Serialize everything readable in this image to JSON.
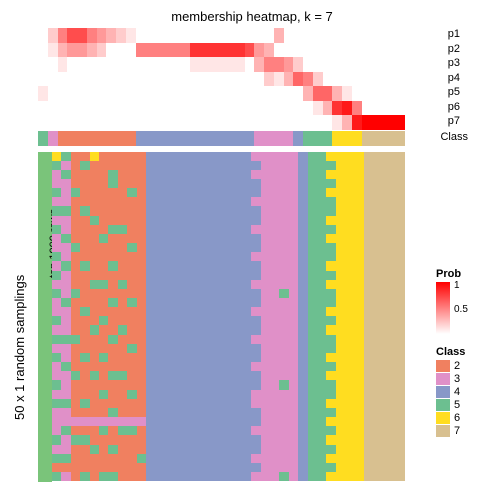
{
  "title": "membership heatmap, k = 7",
  "title_fontsize": 13,
  "ylabel_outer": "50 x 1 random samplings",
  "ylabel_inner": "top 1000 rows",
  "prob_labels": [
    "p1",
    "p2",
    "p3",
    "p4",
    "p5",
    "p6",
    "p7"
  ],
  "class_label": "Class",
  "colors": {
    "white": "#ffffff",
    "green_side": "#7ac47a",
    "prob_low": "#ffffff",
    "prob_high": "#ff0000"
  },
  "class_colors": {
    "2": "#f08060",
    "3": "#e090c8",
    "4": "#8898c8",
    "5": "#6cbf90",
    "6": "#ffdd20",
    "7": "#d8c090"
  },
  "col_widths": [
    0.025,
    0.025,
    0.025,
    0.025,
    0.025,
    0.025,
    0.025,
    0.025,
    0.025,
    0.025,
    0.14,
    0.14,
    0.025,
    0.025,
    0.025,
    0.025,
    0.025,
    0.025,
    0.025,
    0.025,
    0.025,
    0.025,
    0.025,
    0.025,
    0.11
  ],
  "class_assign": [
    5,
    3,
    2,
    2,
    2,
    2,
    2,
    2,
    2,
    2,
    4,
    4,
    4,
    3,
    3,
    3,
    3,
    4,
    5,
    5,
    5,
    6,
    6,
    6,
    7
  ],
  "prob_rows": [
    [
      0,
      0.2,
      0.5,
      0.7,
      0.7,
      0.5,
      0.4,
      0.3,
      0.2,
      0.1,
      0,
      0,
      0,
      0,
      0,
      0.3,
      0,
      0,
      0,
      0,
      0,
      0,
      0,
      0,
      0
    ],
    [
      0,
      0.1,
      0.3,
      0.4,
      0.4,
      0.3,
      0.2,
      0,
      0,
      0,
      0.5,
      0.8,
      0.7,
      0.4,
      0.3,
      0,
      0,
      0,
      0,
      0,
      0,
      0,
      0,
      0,
      0
    ],
    [
      0,
      0,
      0.1,
      0,
      0,
      0,
      0,
      0,
      0,
      0,
      0,
      0.1,
      0,
      0.3,
      0.5,
      0.5,
      0.4,
      0.2,
      0,
      0,
      0,
      0,
      0,
      0,
      0
    ],
    [
      0,
      0,
      0,
      0,
      0,
      0,
      0,
      0,
      0,
      0,
      0,
      0,
      0,
      0,
      0.2,
      0.1,
      0.3,
      0.6,
      0.5,
      0.2,
      0,
      0,
      0,
      0,
      0
    ],
    [
      0.1,
      0,
      0,
      0,
      0,
      0,
      0,
      0,
      0,
      0,
      0,
      0,
      0,
      0,
      0,
      0,
      0,
      0,
      0.3,
      0.6,
      0.6,
      0.3,
      0.1,
      0,
      0
    ],
    [
      0,
      0,
      0,
      0,
      0,
      0,
      0,
      0,
      0,
      0,
      0,
      0,
      0,
      0,
      0,
      0,
      0,
      0,
      0,
      0.1,
      0.3,
      0.8,
      0.9,
      0.5,
      0
    ],
    [
      0,
      0,
      0,
      0,
      0,
      0,
      0,
      0,
      0,
      0,
      0,
      0,
      0,
      0,
      0,
      0,
      0,
      0,
      0,
      0,
      0,
      0.1,
      0.3,
      0.9,
      1
    ]
  ],
  "heat_rows": 36,
  "heat_data_class": [
    [
      6,
      5,
      2,
      2,
      6,
      2,
      2,
      2,
      2,
      2,
      4,
      4,
      3,
      3,
      3,
      3,
      3,
      4,
      5,
      5,
      6,
      6,
      6,
      6,
      7
    ],
    [
      5,
      3,
      2,
      5,
      2,
      2,
      2,
      2,
      2,
      2,
      4,
      4,
      4,
      3,
      3,
      3,
      3,
      4,
      5,
      5,
      5,
      6,
      6,
      6,
      7
    ],
    [
      3,
      5,
      2,
      2,
      2,
      2,
      5,
      2,
      2,
      2,
      4,
      4,
      3,
      3,
      3,
      3,
      3,
      4,
      5,
      5,
      6,
      6,
      6,
      6,
      7
    ],
    [
      3,
      3,
      2,
      2,
      2,
      2,
      5,
      2,
      2,
      2,
      4,
      4,
      4,
      3,
      3,
      3,
      3,
      4,
      5,
      5,
      5,
      6,
      6,
      6,
      7
    ],
    [
      5,
      3,
      5,
      2,
      2,
      2,
      2,
      2,
      5,
      2,
      4,
      4,
      4,
      3,
      3,
      3,
      3,
      4,
      5,
      5,
      6,
      6,
      6,
      6,
      7
    ],
    [
      3,
      3,
      2,
      2,
      2,
      2,
      2,
      2,
      2,
      2,
      4,
      4,
      3,
      3,
      3,
      3,
      3,
      4,
      5,
      5,
      5,
      6,
      6,
      6,
      7
    ],
    [
      5,
      5,
      2,
      5,
      2,
      2,
      2,
      2,
      2,
      2,
      4,
      4,
      4,
      3,
      3,
      3,
      3,
      4,
      5,
      5,
      5,
      6,
      6,
      6,
      7
    ],
    [
      3,
      3,
      2,
      2,
      5,
      2,
      2,
      2,
      2,
      2,
      4,
      4,
      4,
      3,
      3,
      3,
      3,
      4,
      5,
      5,
      6,
      6,
      6,
      6,
      7
    ],
    [
      5,
      3,
      2,
      2,
      2,
      2,
      5,
      5,
      2,
      2,
      4,
      4,
      3,
      3,
      3,
      3,
      3,
      4,
      5,
      5,
      5,
      6,
      6,
      6,
      7
    ],
    [
      3,
      5,
      2,
      2,
      2,
      5,
      2,
      2,
      2,
      2,
      4,
      4,
      4,
      3,
      3,
      3,
      3,
      4,
      5,
      5,
      6,
      6,
      6,
      6,
      7
    ],
    [
      3,
      3,
      5,
      2,
      2,
      2,
      2,
      2,
      5,
      2,
      4,
      4,
      4,
      3,
      3,
      3,
      3,
      4,
      5,
      5,
      5,
      6,
      6,
      6,
      7
    ],
    [
      5,
      3,
      2,
      2,
      2,
      2,
      2,
      2,
      2,
      2,
      4,
      4,
      3,
      3,
      3,
      3,
      3,
      4,
      5,
      5,
      5,
      6,
      6,
      6,
      7
    ],
    [
      3,
      5,
      2,
      5,
      2,
      2,
      5,
      2,
      2,
      2,
      4,
      4,
      4,
      3,
      3,
      3,
      3,
      4,
      5,
      5,
      6,
      6,
      6,
      6,
      7
    ],
    [
      5,
      3,
      2,
      2,
      2,
      2,
      2,
      2,
      2,
      2,
      4,
      4,
      4,
      3,
      3,
      3,
      3,
      4,
      5,
      5,
      5,
      6,
      6,
      6,
      7
    ],
    [
      3,
      3,
      2,
      2,
      5,
      5,
      2,
      5,
      2,
      2,
      4,
      4,
      3,
      3,
      3,
      3,
      3,
      4,
      5,
      5,
      6,
      6,
      6,
      6,
      7
    ],
    [
      5,
      3,
      5,
      2,
      2,
      2,
      2,
      2,
      2,
      2,
      4,
      4,
      4,
      3,
      3,
      5,
      3,
      4,
      5,
      5,
      5,
      6,
      6,
      6,
      7
    ],
    [
      3,
      5,
      2,
      2,
      2,
      2,
      5,
      2,
      5,
      2,
      4,
      4,
      4,
      3,
      3,
      3,
      3,
      4,
      5,
      5,
      5,
      6,
      6,
      6,
      7
    ],
    [
      3,
      3,
      2,
      5,
      2,
      2,
      2,
      2,
      2,
      2,
      4,
      4,
      3,
      3,
      3,
      3,
      3,
      4,
      5,
      5,
      6,
      6,
      6,
      6,
      7
    ],
    [
      5,
      3,
      2,
      2,
      2,
      5,
      2,
      2,
      2,
      2,
      4,
      4,
      4,
      3,
      3,
      3,
      3,
      4,
      5,
      5,
      5,
      6,
      6,
      6,
      7
    ],
    [
      3,
      3,
      2,
      2,
      5,
      2,
      2,
      5,
      2,
      2,
      4,
      4,
      4,
      3,
      3,
      3,
      3,
      4,
      5,
      5,
      6,
      6,
      6,
      6,
      7
    ],
    [
      5,
      5,
      5,
      2,
      2,
      2,
      5,
      2,
      2,
      2,
      4,
      4,
      3,
      3,
      3,
      3,
      3,
      4,
      5,
      5,
      5,
      6,
      6,
      6,
      7
    ],
    [
      3,
      3,
      2,
      2,
      2,
      2,
      2,
      2,
      5,
      2,
      4,
      4,
      4,
      3,
      3,
      3,
      3,
      4,
      5,
      5,
      5,
      6,
      6,
      6,
      7
    ],
    [
      5,
      3,
      2,
      5,
      2,
      5,
      2,
      2,
      2,
      2,
      4,
      4,
      4,
      3,
      3,
      3,
      3,
      4,
      5,
      5,
      6,
      6,
      6,
      6,
      7
    ],
    [
      3,
      5,
      2,
      2,
      2,
      2,
      2,
      2,
      2,
      2,
      4,
      4,
      3,
      3,
      3,
      3,
      3,
      4,
      5,
      5,
      5,
      6,
      6,
      6,
      7
    ],
    [
      3,
      3,
      5,
      2,
      5,
      2,
      5,
      5,
      2,
      2,
      4,
      4,
      4,
      3,
      3,
      3,
      3,
      4,
      5,
      5,
      6,
      6,
      6,
      6,
      7
    ],
    [
      5,
      3,
      2,
      2,
      2,
      2,
      2,
      2,
      2,
      2,
      4,
      4,
      4,
      3,
      3,
      5,
      3,
      4,
      5,
      5,
      5,
      6,
      6,
      6,
      7
    ],
    [
      3,
      3,
      2,
      2,
      2,
      5,
      2,
      2,
      5,
      2,
      4,
      4,
      3,
      3,
      3,
      3,
      3,
      4,
      5,
      5,
      5,
      6,
      6,
      6,
      7
    ],
    [
      5,
      5,
      2,
      5,
      2,
      2,
      2,
      2,
      2,
      2,
      4,
      4,
      3,
      3,
      3,
      3,
      3,
      4,
      5,
      5,
      6,
      6,
      6,
      6,
      7
    ],
    [
      3,
      3,
      2,
      2,
      2,
      2,
      5,
      2,
      2,
      2,
      4,
      4,
      4,
      3,
      3,
      3,
      3,
      4,
      5,
      5,
      5,
      6,
      6,
      6,
      7
    ],
    [
      3,
      3,
      3,
      3,
      3,
      3,
      3,
      3,
      3,
      3,
      4,
      4,
      4,
      3,
      3,
      3,
      3,
      4,
      5,
      5,
      6,
      6,
      6,
      6,
      7
    ],
    [
      3,
      5,
      2,
      2,
      2,
      5,
      2,
      5,
      5,
      2,
      4,
      4,
      3,
      3,
      3,
      3,
      3,
      4,
      5,
      5,
      5,
      6,
      6,
      6,
      7
    ],
    [
      5,
      3,
      5,
      5,
      2,
      2,
      2,
      2,
      2,
      2,
      4,
      4,
      4,
      3,
      3,
      3,
      3,
      4,
      5,
      5,
      6,
      6,
      6,
      6,
      7
    ],
    [
      3,
      3,
      2,
      2,
      5,
      2,
      5,
      2,
      2,
      2,
      4,
      4,
      4,
      3,
      3,
      3,
      3,
      4,
      5,
      5,
      5,
      6,
      6,
      6,
      7
    ],
    [
      5,
      5,
      2,
      2,
      2,
      2,
      2,
      2,
      2,
      5,
      4,
      4,
      3,
      3,
      3,
      3,
      3,
      4,
      5,
      5,
      6,
      6,
      6,
      6,
      7
    ],
    [
      2,
      2,
      2,
      2,
      2,
      2,
      2,
      2,
      2,
      2,
      4,
      4,
      4,
      3,
      3,
      3,
      3,
      4,
      5,
      5,
      5,
      6,
      6,
      6,
      7
    ],
    [
      5,
      3,
      2,
      5,
      2,
      5,
      5,
      2,
      2,
      2,
      4,
      4,
      3,
      3,
      3,
      5,
      3,
      4,
      5,
      5,
      6,
      6,
      6,
      6,
      7
    ]
  ],
  "legend": {
    "prob_title": "Prob",
    "prob_ticks": [
      {
        "v": "1",
        "pos": 0
      },
      {
        "v": "0.5",
        "pos": 24
      }
    ],
    "class_title": "Class",
    "class_items": [
      "2",
      "3",
      "4",
      "5",
      "6",
      "7"
    ]
  }
}
